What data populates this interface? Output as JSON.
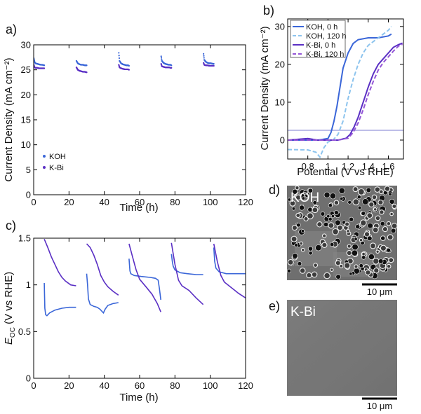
{
  "colors": {
    "koh": "#3a66d8",
    "kbi": "#5a2fc4",
    "koh_dashed": "#8dc4ee",
    "kbi_dashed": "#9455d6",
    "sem_koh_bg": "#6f6f6f",
    "sem_kbi_bg": "#777777"
  },
  "chart_data": [
    {
      "panel": "a)",
      "type": "scatter",
      "xlabel": "Time (h)",
      "ylabel": "Current Density (mA cm⁻²)",
      "xlim": [
        0,
        120
      ],
      "ylim": [
        0,
        30
      ],
      "xticks": [
        0,
        20,
        40,
        60,
        80,
        100,
        120
      ],
      "yticks": [
        0,
        5,
        10,
        15,
        20,
        25,
        30
      ],
      "legend": "left",
      "series": [
        {
          "name": "KOH",
          "segments": [
            [
              [
                0.1,
                27.3
              ],
              [
                0.5,
                26.6
              ],
              [
                1,
                26.3
              ],
              [
                2,
                26.2
              ],
              [
                3,
                26.1
              ],
              [
                4,
                26.0
              ],
              [
                5,
                26.0
              ],
              [
                6,
                25.9
              ]
            ],
            [
              [
                24.2,
                26.8
              ],
              [
                25,
                26.3
              ],
              [
                26,
                26.1
              ],
              [
                27,
                26.0
              ],
              [
                28,
                26.0
              ],
              [
                29,
                25.9
              ],
              [
                30,
                25.9
              ]
            ],
            [
              [
                48.2,
                28.4
              ],
              [
                48.6,
                26.8
              ],
              [
                49.5,
                26.3
              ],
              [
                50.5,
                26.1
              ],
              [
                51.5,
                26.0
              ],
              [
                52.5,
                25.9
              ],
              [
                53.5,
                25.9
              ],
              [
                54,
                25.8
              ]
            ],
            [
              [
                72.2,
                27.7
              ],
              [
                72.6,
                26.8
              ],
              [
                73.5,
                26.4
              ],
              [
                74.5,
                26.2
              ],
              [
                75.5,
                26.1
              ],
              [
                76.5,
                26.0
              ],
              [
                77.5,
                26.0
              ],
              [
                78,
                25.9
              ]
            ],
            [
              [
                96.2,
                28.2
              ],
              [
                96.6,
                27.0
              ],
              [
                97.5,
                26.6
              ],
              [
                98.5,
                26.4
              ],
              [
                99.5,
                26.3
              ],
              [
                100.5,
                26.3
              ],
              [
                101.5,
                26.2
              ],
              [
                102,
                26.2
              ]
            ]
          ]
        },
        {
          "name": "K-Bi",
          "segments": [
            [
              [
                0.1,
                26.0
              ],
              [
                0.5,
                25.5
              ],
              [
                1,
                25.4
              ],
              [
                2,
                25.4
              ],
              [
                3,
                25.3
              ],
              [
                4,
                25.3
              ],
              [
                5,
                25.3
              ],
              [
                6,
                25.3
              ]
            ],
            [
              [
                24.2,
                25.5
              ],
              [
                25,
                25.0
              ],
              [
                26,
                24.8
              ],
              [
                27,
                24.7
              ],
              [
                28,
                24.6
              ],
              [
                29,
                24.6
              ],
              [
                30,
                24.5
              ]
            ],
            [
              [
                48.2,
                26.0
              ],
              [
                48.6,
                25.5
              ],
              [
                49.5,
                25.3
              ],
              [
                50.5,
                25.2
              ],
              [
                51.5,
                25.1
              ],
              [
                52.5,
                25.1
              ],
              [
                53.5,
                25.1
              ],
              [
                54,
                25.0
              ]
            ],
            [
              [
                72.2,
                26.2
              ],
              [
                72.6,
                25.7
              ],
              [
                73.5,
                25.6
              ],
              [
                74.5,
                25.5
              ],
              [
                75.5,
                25.5
              ],
              [
                76.5,
                25.5
              ],
              [
                77.5,
                25.4
              ],
              [
                78,
                25.4
              ]
            ],
            [
              [
                96.2,
                26.4
              ],
              [
                96.6,
                26.0
              ],
              [
                97.5,
                25.9
              ],
              [
                98.5,
                25.9
              ],
              [
                99.5,
                25.8
              ],
              [
                100.5,
                25.8
              ],
              [
                101.5,
                25.8
              ],
              [
                102,
                25.8
              ]
            ]
          ]
        }
      ]
    },
    {
      "panel": "b)",
      "type": "line",
      "xlabel": "Potential (V vs RHE)",
      "ylabel": "Current Density (mA cm⁻²)",
      "xlim": [
        0.6,
        1.75
      ],
      "ylim": [
        -5,
        32
      ],
      "xticks": [
        0.8,
        1.0,
        1.2,
        1.4,
        1.6
      ],
      "yticks": [
        0,
        10,
        20,
        30
      ],
      "legend": "top-left",
      "series": [
        {
          "name": "KOH, 0 h",
          "style": "solid",
          "points": [
            [
              0.6,
              0
            ],
            [
              0.9,
              0
            ],
            [
              1.0,
              0.4
            ],
            [
              1.03,
              2
            ],
            [
              1.06,
              5
            ],
            [
              1.09,
              9
            ],
            [
              1.12,
              14
            ],
            [
              1.15,
              19
            ],
            [
              1.2,
              23
            ],
            [
              1.25,
              25.5
            ],
            [
              1.3,
              26.5
            ],
            [
              1.4,
              27
            ],
            [
              1.5,
              27
            ],
            [
              1.6,
              27.5
            ],
            [
              1.63,
              28
            ]
          ]
        },
        {
          "name": "KOH, 120 h",
          "style": "dashed",
          "points": [
            [
              0.6,
              -2.5
            ],
            [
              0.8,
              -2.6
            ],
            [
              0.88,
              -3.2
            ],
            [
              0.92,
              -4.5
            ],
            [
              0.96,
              -2
            ],
            [
              1.0,
              -0.5
            ],
            [
              1.05,
              0
            ],
            [
              1.1,
              1.5
            ],
            [
              1.15,
              5
            ],
            [
              1.2,
              11
            ],
            [
              1.25,
              16
            ],
            [
              1.3,
              20
            ],
            [
              1.35,
              23
            ],
            [
              1.4,
              25
            ],
            [
              1.5,
              27
            ],
            [
              1.6,
              29
            ],
            [
              1.63,
              30
            ]
          ]
        },
        {
          "name": "K-Bi, 0 h",
          "style": "solid",
          "points": [
            [
              0.6,
              0
            ],
            [
              0.8,
              0.4
            ],
            [
              0.9,
              0
            ],
            [
              1.1,
              0
            ],
            [
              1.18,
              0.5
            ],
            [
              1.22,
              1.5
            ],
            [
              1.26,
              3.5
            ],
            [
              1.3,
              6
            ],
            [
              1.35,
              10
            ],
            [
              1.4,
              14
            ],
            [
              1.45,
              17.5
            ],
            [
              1.5,
              20
            ],
            [
              1.55,
              21.5
            ],
            [
              1.6,
              23
            ],
            [
              1.65,
              24.5
            ],
            [
              1.7,
              25.2
            ],
            [
              1.74,
              25.6
            ]
          ]
        },
        {
          "name": "K-Bi, 120 h",
          "style": "dashed",
          "points": [
            [
              0.6,
              0
            ],
            [
              1.1,
              0
            ],
            [
              1.2,
              0.5
            ],
            [
              1.25,
              2
            ],
            [
              1.3,
              4.5
            ],
            [
              1.35,
              8
            ],
            [
              1.4,
              12
            ],
            [
              1.45,
              15.5
            ],
            [
              1.5,
              18.5
            ],
            [
              1.55,
              20.5
            ],
            [
              1.6,
              22
            ],
            [
              1.65,
              23.5
            ],
            [
              1.7,
              24.8
            ],
            [
              1.74,
              25.3
            ]
          ]
        }
      ]
    },
    {
      "panel": "c)",
      "type": "scatter",
      "xlabel": "Time (h)",
      "ylabel": "E_OC (V vs RHE)",
      "xlim": [
        0,
        120
      ],
      "ylim": [
        0,
        1.5
      ],
      "xticks": [
        0,
        20,
        40,
        60,
        80,
        100,
        120
      ],
      "yticks": [
        0,
        0.5,
        1,
        1.5
      ],
      "series": [
        {
          "name": "KOH",
          "segments": [
            [
              [
                6,
                1.02
              ],
              [
                6.3,
                0.75
              ],
              [
                6.8,
                0.68
              ],
              [
                7.5,
                0.67
              ],
              [
                9,
                0.7
              ],
              [
                12,
                0.73
              ],
              [
                16,
                0.75
              ],
              [
                20,
                0.76
              ],
              [
                24,
                0.76
              ]
            ],
            [
              [
                30,
                1.12
              ],
              [
                30.5,
                1.0
              ],
              [
                31,
                0.85
              ],
              [
                32,
                0.79
              ],
              [
                34,
                0.77
              ],
              [
                36,
                0.76
              ],
              [
                37.5,
                0.74
              ],
              [
                38.5,
                0.72
              ],
              [
                39.5,
                0.7
              ],
              [
                40.5,
                0.74
              ],
              [
                42,
                0.78
              ],
              [
                45,
                0.8
              ],
              [
                48,
                0.81
              ]
            ],
            [
              [
                54,
                1.28
              ],
              [
                54.5,
                1.15
              ],
              [
                55,
                1.12
              ],
              [
                57,
                1.1
              ],
              [
                61,
                1.09
              ],
              [
                66,
                1.08
              ],
              [
                69,
                1.07
              ],
              [
                70.5,
                1.05
              ],
              [
                71.2,
                0.96
              ],
              [
                72,
                0.84
              ]
            ],
            [
              [
                78,
                1.33
              ],
              [
                78.5,
                1.25
              ],
              [
                79,
                1.2
              ],
              [
                80,
                1.16
              ],
              [
                83,
                1.13
              ],
              [
                87,
                1.12
              ],
              [
                92,
                1.11
              ],
              [
                96,
                1.11
              ]
            ],
            [
              [
                102,
                1.4
              ],
              [
                102.5,
                1.25
              ],
              [
                103.2,
                1.18
              ],
              [
                105,
                1.14
              ],
              [
                109,
                1.12
              ],
              [
                115,
                1.12
              ],
              [
                120,
                1.12
              ]
            ]
          ]
        },
        {
          "name": "K-Bi",
          "segments": [
            [
              [
                6,
                1.49
              ],
              [
                8,
                1.4
              ],
              [
                10,
                1.3
              ],
              [
                12,
                1.22
              ],
              [
                14,
                1.14
              ],
              [
                16,
                1.08
              ],
              [
                18,
                1.04
              ],
              [
                21,
                1.0
              ],
              [
                24,
                0.99
              ]
            ],
            [
              [
                30,
                1.44
              ],
              [
                32,
                1.4
              ],
              [
                34,
                1.32
              ],
              [
                36,
                1.22
              ],
              [
                38,
                1.1
              ],
              [
                40,
                1.03
              ],
              [
                42,
                0.98
              ],
              [
                45,
                0.93
              ],
              [
                48,
                0.89
              ]
            ],
            [
              [
                54,
                1.44
              ],
              [
                56,
                1.3
              ],
              [
                58,
                1.16
              ],
              [
                60,
                1.06
              ],
              [
                64,
                0.97
              ],
              [
                67,
                0.9
              ],
              [
                70,
                0.8
              ],
              [
                72,
                0.71
              ]
            ],
            [
              [
                78,
                1.45
              ],
              [
                80,
                1.22
              ],
              [
                82,
                1.05
              ],
              [
                84,
                0.99
              ],
              [
                88,
                0.94
              ],
              [
                92,
                0.86
              ],
              [
                96,
                0.79
              ]
            ],
            [
              [
                102,
                1.44
              ],
              [
                104,
                1.25
              ],
              [
                106,
                1.1
              ],
              [
                108,
                1.03
              ],
              [
                112,
                0.97
              ],
              [
                116,
                0.91
              ],
              [
                120,
                0.86
              ]
            ]
          ]
        }
      ]
    }
  ],
  "figure": {
    "panel_labels": {
      "a": "a)",
      "b": "b)",
      "c": "c)",
      "d": "d)",
      "e": "e)"
    },
    "sem_d": {
      "label": "KOH",
      "scale": "10 μm"
    },
    "sem_e": {
      "label": "K-Bi",
      "scale": "10 μm"
    }
  }
}
